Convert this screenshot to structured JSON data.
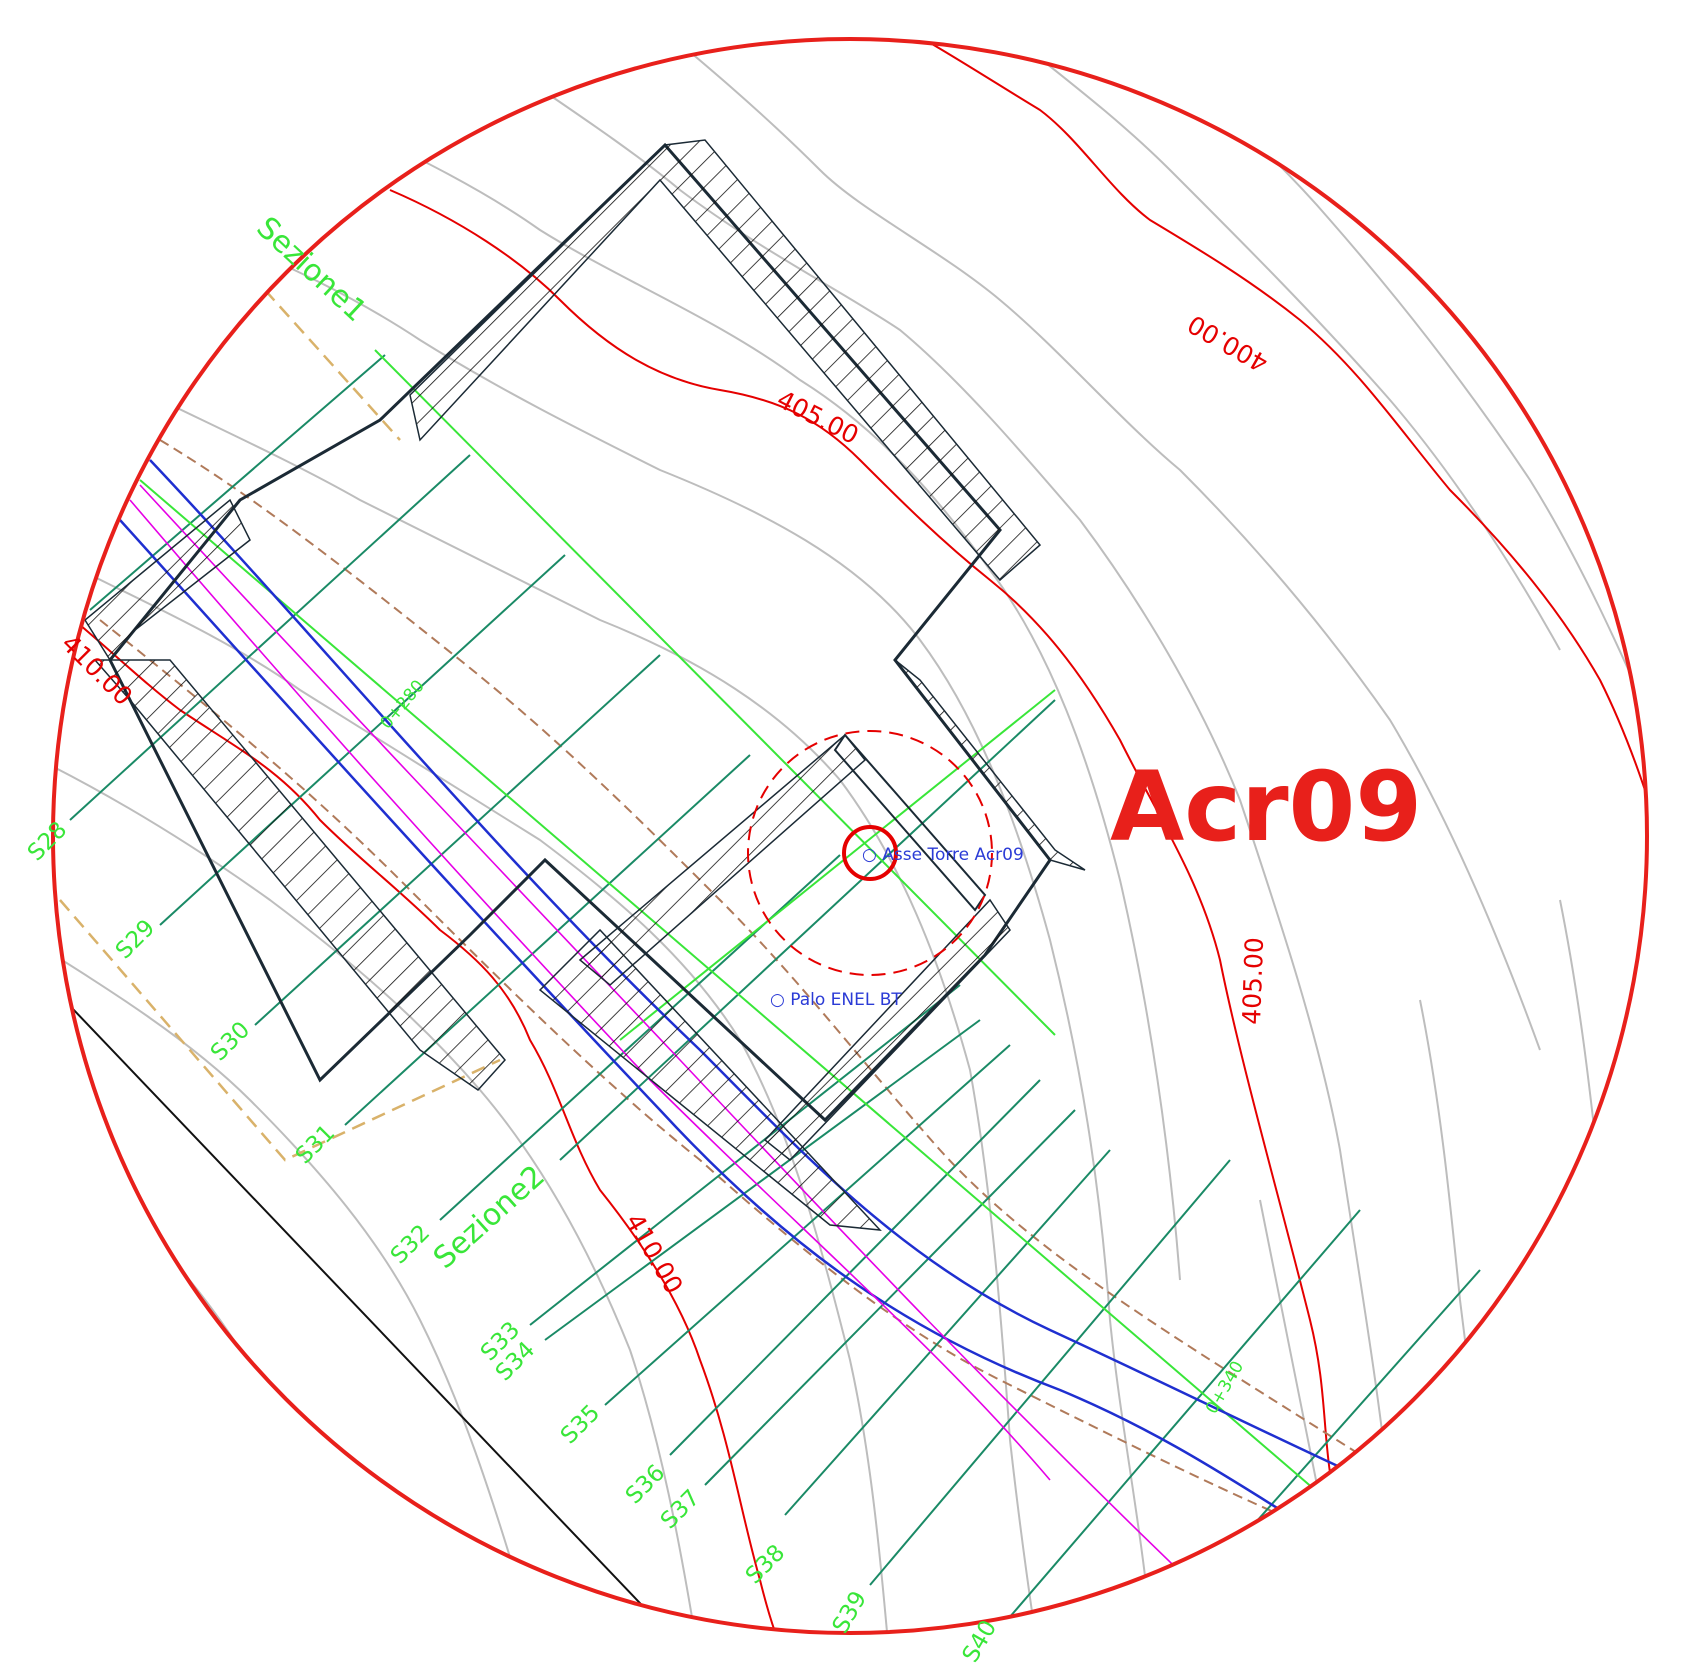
{
  "tower": {
    "name": "Acr09",
    "axis_label": "○ Asse Torre Acr09"
  },
  "notes": {
    "enel_pole": "○ Palo ENEL BT"
  },
  "contours": {
    "c400": "400.00",
    "c405_top": "405.00",
    "c405_right": "405.00",
    "c410_left": "410.00",
    "c410_bottom": "410.00"
  },
  "section_planes": {
    "sezione1": "Sezione1",
    "sezione2": "Sezione2"
  },
  "sections": [
    "S28",
    "S29",
    "S30",
    "S31",
    "S32",
    "S33",
    "S34",
    "S35",
    "S36",
    "S37",
    "S38",
    "S39",
    "S40"
  ],
  "chainages": {
    "upper": "0+280",
    "lower": "0+340"
  },
  "colors": {
    "frame": "#e8201b",
    "contour": "#e50000",
    "terrain": "#b9b9b9",
    "section_line": "#1a8a66",
    "section_label": "#39e639",
    "road_edge": "#1f2fd0",
    "road_axis": "#e600e6",
    "platform_outline": "#1b2a35",
    "dashed_boundary": "#b07a5a",
    "gold_dashed": "#d9b26a"
  }
}
